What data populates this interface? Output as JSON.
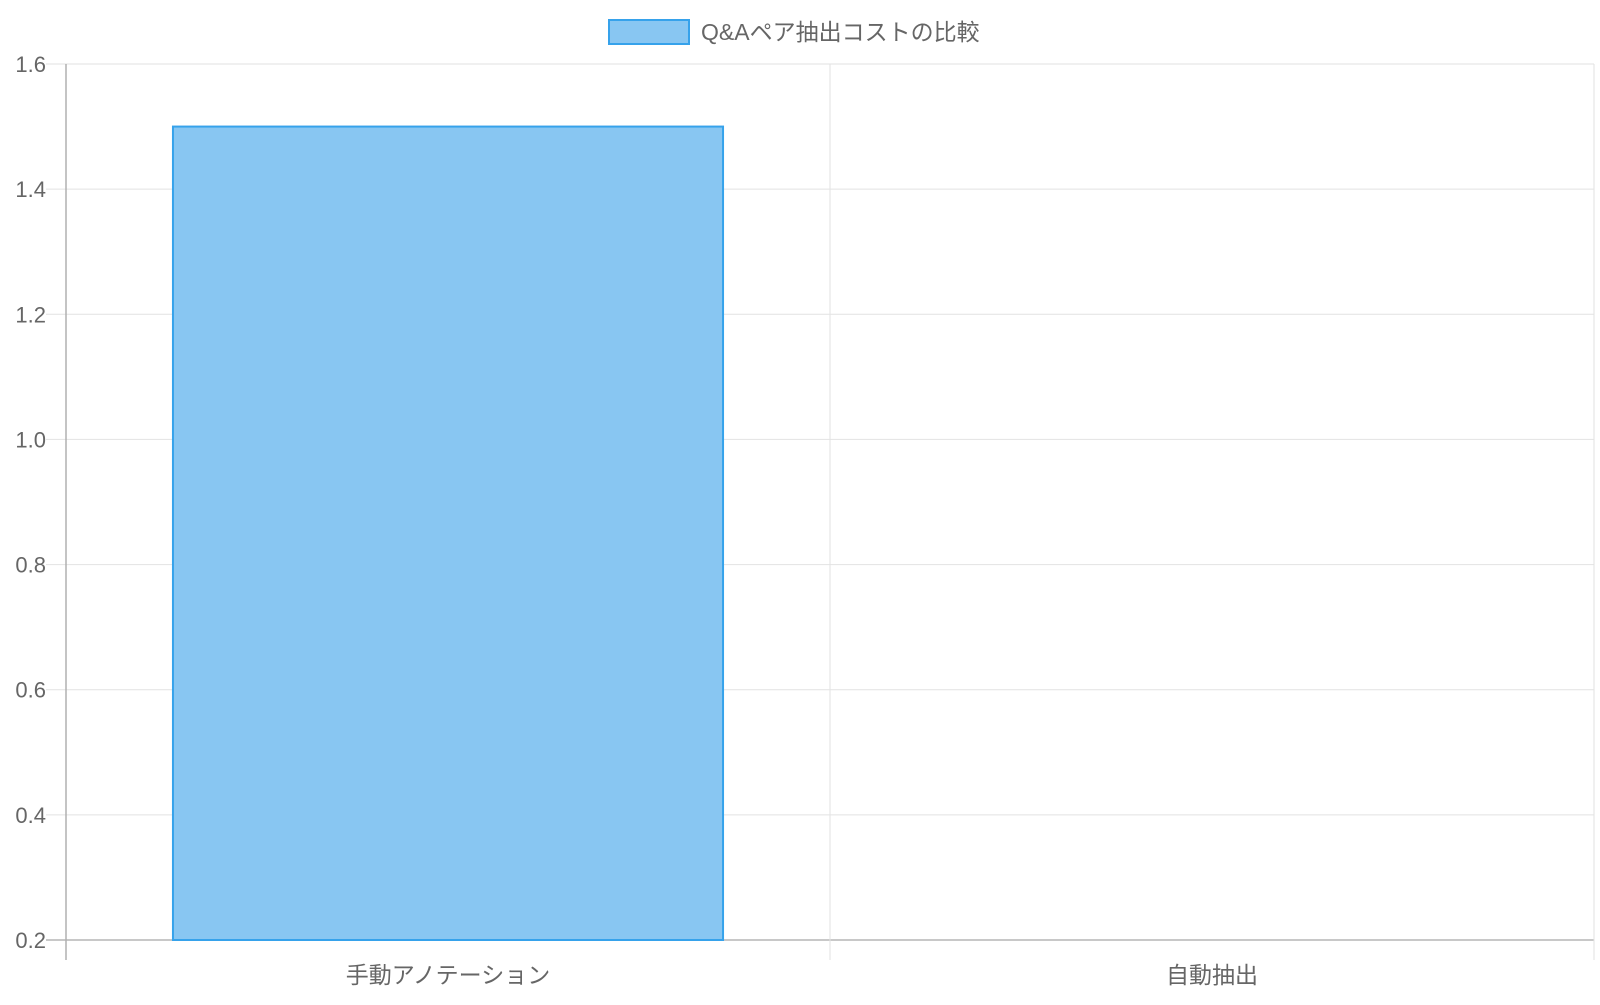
{
  "chart_data": {
    "type": "bar",
    "title": "",
    "legend": {
      "position": "top",
      "entries": [
        "Q&Aペア抽出コストの比較"
      ]
    },
    "categories": [
      "手動アノテーション",
      "自動抽出"
    ],
    "series": [
      {
        "name": "Q&Aペア抽出コストの比較",
        "values": [
          1.5,
          0.2
        ],
        "fill": "#88c6f2",
        "border": "#36a2eb"
      }
    ],
    "ylim": [
      0.2,
      1.6
    ],
    "yticks": [
      "1.6",
      "1.4",
      "1.2",
      "1.0",
      "0.8",
      "0.6",
      "0.4",
      "0.2"
    ],
    "grid": true,
    "xlabel": "",
    "ylabel": ""
  }
}
